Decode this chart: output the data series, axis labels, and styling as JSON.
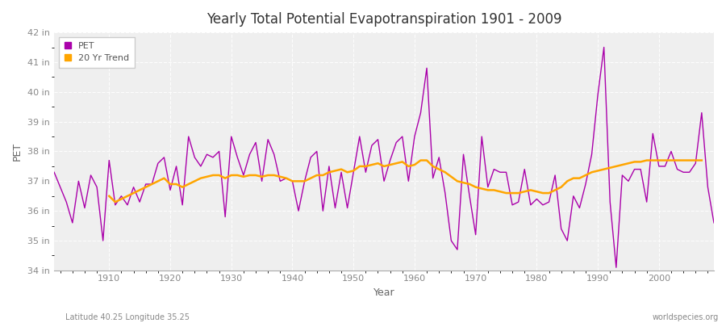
{
  "title": "Yearly Total Potential Evapotranspiration 1901 - 2009",
  "xlabel": "Year",
  "ylabel": "PET",
  "subtitle_left": "Latitude 40.25 Longitude 35.25",
  "subtitle_right": "worldspecies.org",
  "ylim": [
    34,
    42
  ],
  "xlim": [
    1901,
    2009
  ],
  "yticks": [
    34,
    35,
    36,
    37,
    38,
    39,
    40,
    41,
    42
  ],
  "ytick_labels": [
    "34 in",
    "35 in",
    "36 in",
    "37 in",
    "38 in",
    "39 in",
    "40 in",
    "41 in",
    "42 in"
  ],
  "pet_color": "#AA00AA",
  "trend_color": "#FFA500",
  "background_color": "#FFFFFF",
  "plot_bg_color": "#EFEFEF",
  "legend_pet": "PET",
  "legend_trend": "20 Yr Trend",
  "years": [
    1901,
    1902,
    1903,
    1904,
    1905,
    1906,
    1907,
    1908,
    1909,
    1910,
    1911,
    1912,
    1913,
    1914,
    1915,
    1916,
    1917,
    1918,
    1919,
    1920,
    1921,
    1922,
    1923,
    1924,
    1925,
    1926,
    1927,
    1928,
    1929,
    1930,
    1931,
    1932,
    1933,
    1934,
    1935,
    1936,
    1937,
    1938,
    1939,
    1940,
    1941,
    1942,
    1943,
    1944,
    1945,
    1946,
    1947,
    1948,
    1949,
    1950,
    1951,
    1952,
    1953,
    1954,
    1955,
    1956,
    1957,
    1958,
    1959,
    1960,
    1961,
    1962,
    1963,
    1964,
    1965,
    1966,
    1967,
    1968,
    1969,
    1970,
    1971,
    1972,
    1973,
    1974,
    1975,
    1976,
    1977,
    1978,
    1979,
    1980,
    1981,
    1982,
    1983,
    1984,
    1985,
    1986,
    1987,
    1988,
    1989,
    1990,
    1991,
    1992,
    1993,
    1994,
    1995,
    1996,
    1997,
    1998,
    1999,
    2000,
    2001,
    2002,
    2003,
    2004,
    2005,
    2006,
    2007,
    2008,
    2009
  ],
  "pet_values": [
    37.3,
    36.8,
    36.3,
    35.6,
    37.0,
    36.1,
    37.2,
    36.8,
    35.0,
    37.7,
    36.2,
    36.5,
    36.2,
    36.8,
    36.3,
    36.9,
    36.9,
    37.6,
    37.8,
    36.7,
    37.5,
    36.2,
    38.5,
    37.8,
    37.5,
    37.9,
    37.8,
    38.0,
    35.8,
    38.5,
    37.8,
    37.2,
    37.9,
    38.3,
    37.0,
    38.4,
    37.9,
    37.0,
    37.1,
    37.0,
    36.0,
    37.0,
    37.8,
    38.0,
    36.0,
    37.5,
    36.1,
    37.3,
    36.1,
    37.3,
    38.5,
    37.3,
    38.2,
    38.4,
    37.0,
    37.7,
    38.3,
    38.5,
    37.0,
    38.5,
    39.3,
    40.8,
    37.1,
    37.8,
    36.6,
    35.0,
    34.7,
    37.9,
    36.5,
    35.2,
    38.5,
    36.8,
    37.4,
    37.3,
    37.3,
    36.2,
    36.3,
    37.4,
    36.2,
    36.4,
    36.2,
    36.3,
    37.2,
    35.4,
    35.0,
    36.5,
    36.1,
    36.9,
    37.9,
    39.9,
    41.5,
    36.3,
    34.1,
    37.2,
    37.0,
    37.4,
    37.4,
    36.3,
    38.6,
    37.5,
    37.5,
    38.0,
    37.4,
    37.3,
    37.3,
    37.6,
    39.3,
    36.8,
    35.6
  ],
  "trend_values": [
    null,
    null,
    null,
    null,
    null,
    null,
    null,
    null,
    null,
    36.5,
    36.3,
    36.4,
    36.5,
    36.6,
    36.7,
    36.8,
    36.9,
    37.0,
    37.1,
    36.9,
    36.9,
    36.8,
    36.9,
    37.0,
    37.1,
    37.15,
    37.2,
    37.2,
    37.1,
    37.2,
    37.2,
    37.15,
    37.2,
    37.2,
    37.15,
    37.2,
    37.2,
    37.15,
    37.1,
    37.0,
    37.0,
    37.0,
    37.1,
    37.2,
    37.2,
    37.3,
    37.35,
    37.4,
    37.3,
    37.35,
    37.5,
    37.5,
    37.55,
    37.6,
    37.5,
    37.55,
    37.6,
    37.65,
    37.5,
    37.55,
    37.7,
    37.7,
    37.5,
    37.4,
    37.3,
    37.15,
    37.0,
    36.95,
    36.9,
    36.8,
    36.75,
    36.7,
    36.7,
    36.65,
    36.6,
    36.6,
    36.6,
    36.65,
    36.7,
    36.65,
    36.6,
    36.6,
    36.7,
    36.8,
    37.0,
    37.1,
    37.1,
    37.2,
    37.3,
    37.35,
    37.4,
    37.45,
    37.5,
    37.55,
    37.6,
    37.65,
    37.65,
    37.7,
    37.7,
    37.7,
    37.7,
    37.7,
    37.7,
    37.7,
    37.7,
    37.7,
    37.7
  ]
}
